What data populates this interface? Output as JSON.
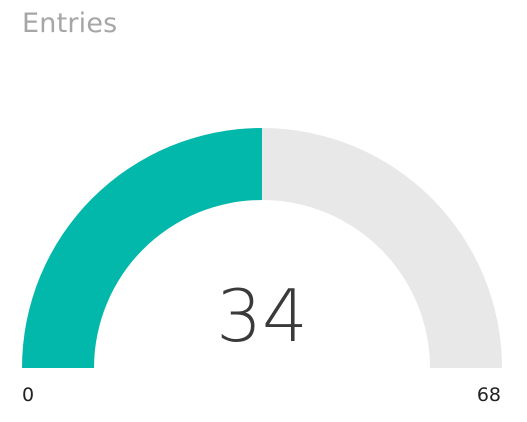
{
  "card": {
    "title": "Entries"
  },
  "gauge": {
    "value": 34,
    "value_text": "34",
    "min": 0,
    "min_text": "0",
    "max": 68,
    "max_text": "68",
    "fill_color": "#01b8aa",
    "track_color": "#e8e8e8"
  }
}
